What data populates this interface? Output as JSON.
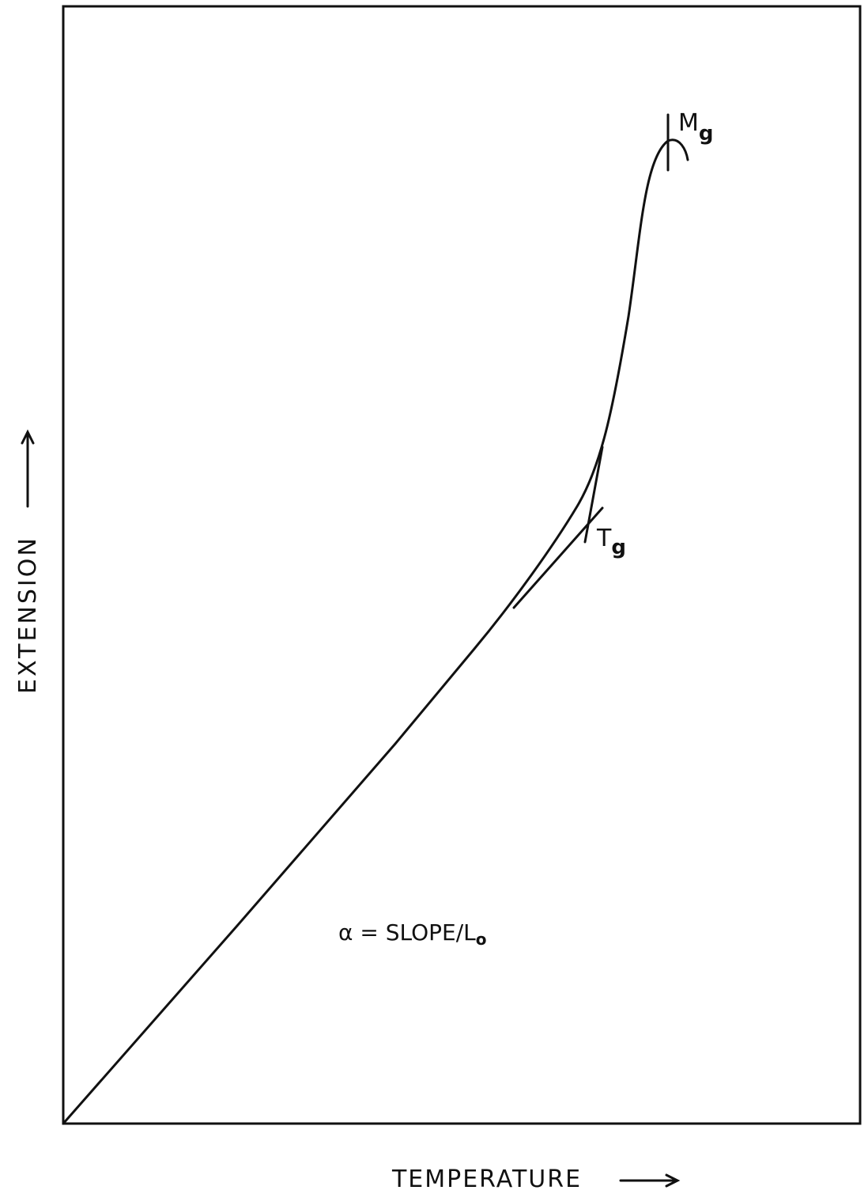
{
  "x_label": "TEMPERATURE",
  "y_label": "EXTENSION",
  "annotations": [
    {
      "main": "M",
      "sub": "g"
    },
    {
      "main": "T",
      "sub": "g"
    }
  ],
  "formula": {
    "main": "α = SLOPE/L",
    "sub": "o"
  }
}
